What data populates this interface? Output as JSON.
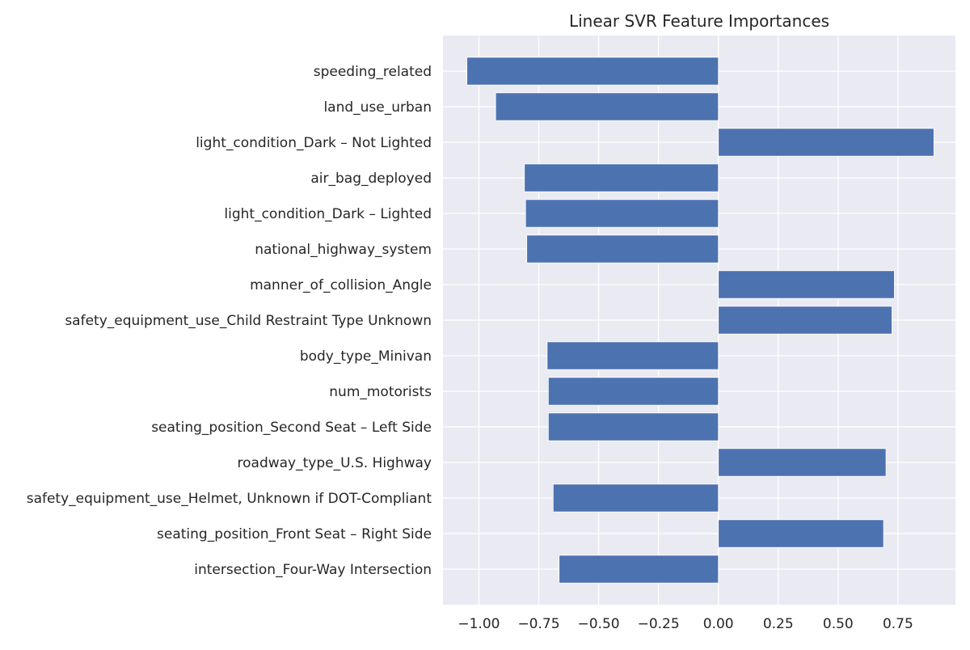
{
  "chart_data": {
    "type": "bar",
    "orientation": "horizontal",
    "title": "Linear SVR Feature Importances",
    "xlabel": "",
    "ylabel": "",
    "xlim": [
      -1.15,
      0.99
    ],
    "xticks": [
      -1.0,
      -0.75,
      -0.5,
      -0.25,
      0.0,
      0.25,
      0.5,
      0.75
    ],
    "xtick_labels": [
      "−1.00",
      "−0.75",
      "−0.50",
      "−0.25",
      "0.00",
      "0.25",
      "0.50",
      "0.75"
    ],
    "grid": true,
    "categories": [
      "speeding_related",
      "land_use_urban",
      "light_condition_Dark – Not Lighted",
      "air_bag_deployed",
      "light_condition_Dark – Lighted",
      "national_highway_system",
      "manner_of_collision_Angle",
      "safety_equipment_use_Child Restraint Type Unknown",
      "body_type_Minivan",
      "num_motorists",
      "seating_position_Second Seat – Left Side",
      "roadway_type_U.S. Highway",
      "safety_equipment_use_Helmet, Unknown if DOT-Compliant",
      "seating_position_Front Seat – Right Side",
      "intersection_Four-Way Intersection"
    ],
    "values": [
      -1.05,
      -0.93,
      0.9,
      -0.81,
      -0.805,
      -0.8,
      0.735,
      0.725,
      -0.715,
      -0.71,
      -0.71,
      0.7,
      -0.69,
      0.69,
      -0.665
    ],
    "colors": {
      "bar": "#4c72b0",
      "plot_background": "#eaeaf2",
      "grid": "#ffffff",
      "text": "#262626"
    }
  }
}
